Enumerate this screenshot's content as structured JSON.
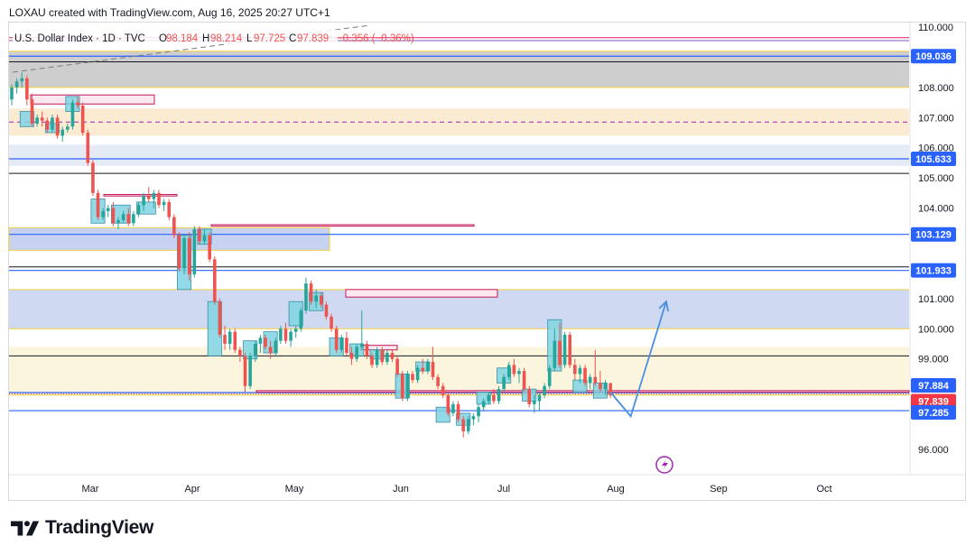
{
  "caption": "LOXAU created with TradingView.com, Aug 16, 2025 20:27 UTC+1",
  "brand": {
    "name": "TradingView",
    "logo_icon": "tradingview-logo-icon"
  },
  "colors": {
    "up": "#26a69a",
    "down": "#ef5350",
    "box_fill": "#7fd3e3",
    "box_stroke": "#3a8fa6",
    "arrow": "#4a90e2",
    "price_badge_blue": "#2962ff",
    "price_badge_red": "#f23645"
  },
  "chart_data": {
    "type": "candlestick",
    "title": "U.S. Dollar Index · 1D · TVC",
    "ohlc": {
      "O_label": "O",
      "O": "98.184",
      "H_label": "H",
      "H": "98.214",
      "L_label": "L",
      "L": "97.725",
      "C_label": "C",
      "C": "97.839",
      "change": "−0.356 (−0.36%)"
    },
    "x_axis_labels": [
      "Mar",
      "Apr",
      "May",
      "Jun",
      "Jul",
      "Aug",
      "Sep",
      "Oct"
    ],
    "y_axis_ticks": [
      "110.000",
      "108.000",
      "107.000",
      "106.000",
      "105.000",
      "104.000",
      "101.000",
      "100.000",
      "99.000",
      "96.000"
    ],
    "ylim": [
      95.2,
      110.0
    ],
    "price_labels": [
      {
        "price": 109.036,
        "text": "109.036",
        "color": "#2962ff"
      },
      {
        "price": 105.633,
        "text": "105.633",
        "color": "#2962ff"
      },
      {
        "price": 103.129,
        "text": "103.129",
        "color": "#2962ff"
      },
      {
        "price": 101.933,
        "text": "101.933",
        "color": "#2962ff"
      },
      {
        "price": 97.884,
        "text": "97.884",
        "color": "#2962ff"
      },
      {
        "price": 97.839,
        "text": "97.839",
        "color": "#f23645"
      },
      {
        "price": 97.285,
        "text": "97.285",
        "color": "#2962ff"
      }
    ],
    "zones": [
      {
        "p1": 108.0,
        "p2": 109.2,
        "fill": "#bdbdbd",
        "opacity": 0.75
      },
      {
        "p1": 106.4,
        "p2": 107.3,
        "fill": "#fbe3c0",
        "opacity": 0.7
      },
      {
        "p1": 105.4,
        "p2": 106.1,
        "fill": "#dfe5f5",
        "opacity": 0.8
      },
      {
        "p1": 100.0,
        "p2": 101.3,
        "fill": "#c7d2f0",
        "opacity": 0.85
      },
      {
        "p1": 97.8,
        "p2": 99.4,
        "fill": "#fbf1cf",
        "opacity": 0.7
      }
    ],
    "candles": [
      {
        "t": 0,
        "o": 107.6,
        "h": 108.1,
        "l": 107.4,
        "c": 108.0
      },
      {
        "t": 1,
        "o": 108.0,
        "h": 108.3,
        "l": 107.8,
        "c": 108.2
      },
      {
        "t": 2,
        "o": 108.2,
        "h": 108.5,
        "l": 108.0,
        "c": 108.3
      },
      {
        "t": 3,
        "o": 108.3,
        "h": 108.4,
        "l": 107.4,
        "c": 107.6
      },
      {
        "t": 4,
        "o": 107.6,
        "h": 107.8,
        "l": 106.7,
        "c": 106.8
      },
      {
        "t": 5,
        "o": 106.8,
        "h": 107.1,
        "l": 106.7,
        "c": 107.0
      },
      {
        "t": 6,
        "o": 107.0,
        "h": 107.2,
        "l": 106.7,
        "c": 106.9
      },
      {
        "t": 7,
        "o": 106.9,
        "h": 107.0,
        "l": 106.5,
        "c": 106.6
      },
      {
        "t": 8,
        "o": 106.6,
        "h": 107.1,
        "l": 106.5,
        "c": 107.0
      },
      {
        "t": 9,
        "o": 107.0,
        "h": 107.1,
        "l": 106.3,
        "c": 106.4
      },
      {
        "t": 10,
        "o": 106.4,
        "h": 106.7,
        "l": 106.2,
        "c": 106.6
      },
      {
        "t": 11,
        "o": 106.6,
        "h": 106.8,
        "l": 106.5,
        "c": 106.7
      },
      {
        "t": 12,
        "o": 106.7,
        "h": 107.6,
        "l": 106.6,
        "c": 107.5
      },
      {
        "t": 13,
        "o": 107.5,
        "h": 107.7,
        "l": 107.3,
        "c": 107.4
      },
      {
        "t": 14,
        "o": 107.4,
        "h": 107.5,
        "l": 106.4,
        "c": 106.5
      },
      {
        "t": 15,
        "o": 106.5,
        "h": 106.6,
        "l": 105.4,
        "c": 105.5
      },
      {
        "t": 16,
        "o": 105.5,
        "h": 105.6,
        "l": 104.4,
        "c": 104.5
      },
      {
        "t": 17,
        "o": 104.5,
        "h": 104.6,
        "l": 103.6,
        "c": 103.7
      },
      {
        "t": 18,
        "o": 103.7,
        "h": 104.0,
        "l": 103.6,
        "c": 103.9
      },
      {
        "t": 19,
        "o": 103.9,
        "h": 104.1,
        "l": 103.7,
        "c": 104.0
      },
      {
        "t": 20,
        "o": 104.0,
        "h": 104.2,
        "l": 103.4,
        "c": 103.5
      },
      {
        "t": 21,
        "o": 103.5,
        "h": 103.7,
        "l": 103.3,
        "c": 103.6
      },
      {
        "t": 22,
        "o": 103.6,
        "h": 103.9,
        "l": 103.5,
        "c": 103.8
      },
      {
        "t": 23,
        "o": 103.8,
        "h": 104.0,
        "l": 103.4,
        "c": 103.5
      },
      {
        "t": 24,
        "o": 103.5,
        "h": 103.9,
        "l": 103.4,
        "c": 103.8
      },
      {
        "t": 25,
        "o": 103.8,
        "h": 104.2,
        "l": 103.7,
        "c": 104.1
      },
      {
        "t": 26,
        "o": 104.1,
        "h": 104.5,
        "l": 103.9,
        "c": 104.4
      },
      {
        "t": 27,
        "o": 104.4,
        "h": 104.7,
        "l": 104.2,
        "c": 104.3
      },
      {
        "t": 28,
        "o": 104.3,
        "h": 104.6,
        "l": 104.0,
        "c": 104.5
      },
      {
        "t": 29,
        "o": 104.5,
        "h": 104.6,
        "l": 104.0,
        "c": 104.1
      },
      {
        "t": 30,
        "o": 104.1,
        "h": 104.3,
        "l": 103.9,
        "c": 104.2
      },
      {
        "t": 31,
        "o": 104.2,
        "h": 104.3,
        "l": 103.6,
        "c": 103.7
      },
      {
        "t": 32,
        "o": 103.7,
        "h": 103.8,
        "l": 103.0,
        "c": 103.1
      },
      {
        "t": 33,
        "o": 103.1,
        "h": 103.2,
        "l": 101.9,
        "c": 102.0
      },
      {
        "t": 34,
        "o": 102.0,
        "h": 103.1,
        "l": 101.8,
        "c": 103.0
      },
      {
        "t": 35,
        "o": 103.0,
        "h": 103.2,
        "l": 101.6,
        "c": 101.8
      },
      {
        "t": 36,
        "o": 101.8,
        "h": 103.4,
        "l": 101.7,
        "c": 103.3
      },
      {
        "t": 37,
        "o": 103.3,
        "h": 103.4,
        "l": 102.8,
        "c": 102.9
      },
      {
        "t": 38,
        "o": 102.9,
        "h": 103.3,
        "l": 102.8,
        "c": 103.1
      },
      {
        "t": 39,
        "o": 103.1,
        "h": 103.2,
        "l": 102.2,
        "c": 102.3
      },
      {
        "t": 40,
        "o": 102.3,
        "h": 102.4,
        "l": 100.8,
        "c": 100.9
      },
      {
        "t": 41,
        "o": 100.9,
        "h": 101.0,
        "l": 99.7,
        "c": 99.8
      },
      {
        "t": 42,
        "o": 99.8,
        "h": 100.1,
        "l": 99.3,
        "c": 99.5
      },
      {
        "t": 43,
        "o": 99.5,
        "h": 100.0,
        "l": 99.3,
        "c": 99.9
      },
      {
        "t": 44,
        "o": 99.9,
        "h": 100.0,
        "l": 99.2,
        "c": 99.3
      },
      {
        "t": 45,
        "o": 99.3,
        "h": 99.4,
        "l": 98.9,
        "c": 99.1
      },
      {
        "t": 46,
        "o": 99.1,
        "h": 99.2,
        "l": 97.9,
        "c": 98.1
      },
      {
        "t": 47,
        "o": 98.1,
        "h": 99.2,
        "l": 98.0,
        "c": 99.1
      },
      {
        "t": 48,
        "o": 99.1,
        "h": 99.6,
        "l": 98.9,
        "c": 99.5
      },
      {
        "t": 49,
        "o": 99.5,
        "h": 99.8,
        "l": 99.2,
        "c": 99.7
      },
      {
        "t": 50,
        "o": 99.7,
        "h": 99.8,
        "l": 99.3,
        "c": 99.4
      },
      {
        "t": 51,
        "o": 99.4,
        "h": 99.6,
        "l": 99.0,
        "c": 99.2
      },
      {
        "t": 52,
        "o": 99.2,
        "h": 99.7,
        "l": 99.1,
        "c": 99.6
      },
      {
        "t": 53,
        "o": 99.6,
        "h": 100.1,
        "l": 99.5,
        "c": 100.0
      },
      {
        "t": 54,
        "o": 100.0,
        "h": 100.2,
        "l": 99.5,
        "c": 99.6
      },
      {
        "t": 55,
        "o": 99.6,
        "h": 100.0,
        "l": 99.4,
        "c": 99.9
      },
      {
        "t": 56,
        "o": 99.9,
        "h": 100.1,
        "l": 99.7,
        "c": 100.0
      },
      {
        "t": 57,
        "o": 100.0,
        "h": 100.7,
        "l": 99.9,
        "c": 100.6
      },
      {
        "t": 58,
        "o": 100.6,
        "h": 101.7,
        "l": 100.5,
        "c": 101.5
      },
      {
        "t": 59,
        "o": 101.5,
        "h": 101.6,
        "l": 100.8,
        "c": 100.9
      },
      {
        "t": 60,
        "o": 100.9,
        "h": 101.3,
        "l": 100.7,
        "c": 101.1
      },
      {
        "t": 61,
        "o": 101.1,
        "h": 101.2,
        "l": 100.7,
        "c": 100.8
      },
      {
        "t": 62,
        "o": 100.8,
        "h": 100.9,
        "l": 100.3,
        "c": 100.4
      },
      {
        "t": 63,
        "o": 100.4,
        "h": 100.5,
        "l": 99.9,
        "c": 100.0
      },
      {
        "t": 64,
        "o": 100.0,
        "h": 100.1,
        "l": 99.2,
        "c": 99.3
      },
      {
        "t": 65,
        "o": 99.3,
        "h": 99.8,
        "l": 99.2,
        "c": 99.7
      },
      {
        "t": 66,
        "o": 99.7,
        "h": 99.9,
        "l": 99.1,
        "c": 99.2
      },
      {
        "t": 67,
        "o": 99.2,
        "h": 99.4,
        "l": 98.8,
        "c": 99.0
      },
      {
        "t": 68,
        "o": 99.0,
        "h": 99.5,
        "l": 98.9,
        "c": 99.4
      },
      {
        "t": 69,
        "o": 99.4,
        "h": 100.6,
        "l": 99.3,
        "c": 99.5
      },
      {
        "t": 70,
        "o": 99.5,
        "h": 99.6,
        "l": 99.0,
        "c": 99.1
      },
      {
        "t": 71,
        "o": 99.1,
        "h": 99.2,
        "l": 98.7,
        "c": 98.8
      },
      {
        "t": 72,
        "o": 98.8,
        "h": 99.4,
        "l": 98.7,
        "c": 99.3
      },
      {
        "t": 73,
        "o": 99.3,
        "h": 99.4,
        "l": 98.8,
        "c": 98.9
      },
      {
        "t": 74,
        "o": 98.9,
        "h": 99.3,
        "l": 98.8,
        "c": 99.2
      },
      {
        "t": 75,
        "o": 99.2,
        "h": 99.3,
        "l": 98.9,
        "c": 99.0
      },
      {
        "t": 76,
        "o": 99.0,
        "h": 99.1,
        "l": 98.4,
        "c": 98.5
      },
      {
        "t": 77,
        "o": 98.5,
        "h": 98.6,
        "l": 97.6,
        "c": 97.7
      },
      {
        "t": 78,
        "o": 97.7,
        "h": 98.6,
        "l": 97.6,
        "c": 98.5
      },
      {
        "t": 79,
        "o": 98.5,
        "h": 98.6,
        "l": 98.2,
        "c": 98.3
      },
      {
        "t": 80,
        "o": 98.3,
        "h": 98.8,
        "l": 98.2,
        "c": 98.7
      },
      {
        "t": 81,
        "o": 98.7,
        "h": 99.0,
        "l": 98.5,
        "c": 98.6
      },
      {
        "t": 82,
        "o": 98.6,
        "h": 99.0,
        "l": 98.5,
        "c": 98.9
      },
      {
        "t": 83,
        "o": 98.9,
        "h": 99.4,
        "l": 98.3,
        "c": 98.4
      },
      {
        "t": 84,
        "o": 98.4,
        "h": 98.5,
        "l": 98.0,
        "c": 98.1
      },
      {
        "t": 85,
        "o": 98.1,
        "h": 98.2,
        "l": 97.7,
        "c": 97.8
      },
      {
        "t": 86,
        "o": 97.8,
        "h": 97.9,
        "l": 97.1,
        "c": 97.2
      },
      {
        "t": 87,
        "o": 97.2,
        "h": 97.6,
        "l": 97.1,
        "c": 97.5
      },
      {
        "t": 88,
        "o": 97.5,
        "h": 97.6,
        "l": 96.9,
        "c": 97.0
      },
      {
        "t": 89,
        "o": 97.0,
        "h": 97.1,
        "l": 96.4,
        "c": 96.6
      },
      {
        "t": 90,
        "o": 96.6,
        "h": 97.1,
        "l": 96.5,
        "c": 97.0
      },
      {
        "t": 91,
        "o": 97.0,
        "h": 97.2,
        "l": 96.8,
        "c": 97.1
      },
      {
        "t": 92,
        "o": 97.1,
        "h": 97.5,
        "l": 96.9,
        "c": 97.4
      },
      {
        "t": 93,
        "o": 97.4,
        "h": 97.7,
        "l": 97.3,
        "c": 97.6
      },
      {
        "t": 94,
        "o": 97.6,
        "h": 97.9,
        "l": 97.5,
        "c": 97.8
      },
      {
        "t": 95,
        "o": 97.8,
        "h": 98.0,
        "l": 97.5,
        "c": 97.6
      },
      {
        "t": 96,
        "o": 97.6,
        "h": 98.1,
        "l": 97.5,
        "c": 98.0
      },
      {
        "t": 97,
        "o": 98.0,
        "h": 98.5,
        "l": 97.9,
        "c": 98.4
      },
      {
        "t": 98,
        "o": 98.4,
        "h": 98.9,
        "l": 98.3,
        "c": 98.8
      },
      {
        "t": 99,
        "o": 98.8,
        "h": 99.0,
        "l": 98.4,
        "c": 98.5
      },
      {
        "t": 100,
        "o": 98.5,
        "h": 98.7,
        "l": 98.2,
        "c": 98.6
      },
      {
        "t": 101,
        "o": 98.6,
        "h": 98.7,
        "l": 97.9,
        "c": 98.0
      },
      {
        "t": 102,
        "o": 98.0,
        "h": 98.1,
        "l": 97.4,
        "c": 97.5
      },
      {
        "t": 103,
        "o": 97.5,
        "h": 97.8,
        "l": 97.2,
        "c": 97.6
      },
      {
        "t": 104,
        "o": 97.6,
        "h": 97.9,
        "l": 97.3,
        "c": 97.8
      },
      {
        "t": 105,
        "o": 97.8,
        "h": 98.2,
        "l": 97.7,
        "c": 98.1
      },
      {
        "t": 106,
        "o": 98.1,
        "h": 98.8,
        "l": 98.0,
        "c": 98.7
      },
      {
        "t": 107,
        "o": 98.7,
        "h": 100.0,
        "l": 98.6,
        "c": 99.6
      },
      {
        "t": 108,
        "o": 99.6,
        "h": 100.2,
        "l": 98.7,
        "c": 98.8
      },
      {
        "t": 109,
        "o": 98.8,
        "h": 99.9,
        "l": 98.7,
        "c": 99.8
      },
      {
        "t": 110,
        "o": 99.8,
        "h": 99.9,
        "l": 98.7,
        "c": 98.8
      },
      {
        "t": 111,
        "o": 98.8,
        "h": 99.0,
        "l": 98.3,
        "c": 98.5
      },
      {
        "t": 112,
        "o": 98.5,
        "h": 98.8,
        "l": 98.2,
        "c": 98.7
      },
      {
        "t": 113,
        "o": 98.7,
        "h": 98.8,
        "l": 98.1,
        "c": 98.2
      },
      {
        "t": 114,
        "o": 98.2,
        "h": 98.5,
        "l": 98.0,
        "c": 98.4
      },
      {
        "t": 115,
        "o": 98.4,
        "h": 99.3,
        "l": 98.1,
        "c": 98.2
      },
      {
        "t": 116,
        "o": 98.2,
        "h": 98.6,
        "l": 97.9,
        "c": 98.0
      },
      {
        "t": 117,
        "o": 98.0,
        "h": 98.3,
        "l": 97.8,
        "c": 98.2
      },
      {
        "t": 118,
        "o": 98.2,
        "h": 98.2,
        "l": 97.7,
        "c": 97.8
      }
    ],
    "highlight_boxes": [
      {
        "t1": 2,
        "t2": 4,
        "p1": 106.7,
        "p2": 107.2
      },
      {
        "t1": 7,
        "t2": 9,
        "p1": 106.5,
        "p2": 106.8
      },
      {
        "t1": 11,
        "t2": 13,
        "p1": 107.2,
        "p2": 107.7
      },
      {
        "t1": 16,
        "t2": 18,
        "p1": 103.5,
        "p2": 104.3
      },
      {
        "t1": 20,
        "t2": 23,
        "p1": 103.5,
        "p2": 104.1
      },
      {
        "t1": 25,
        "t2": 28,
        "p1": 103.8,
        "p2": 104.2
      },
      {
        "t1": 33,
        "t2": 35,
        "p1": 101.3,
        "p2": 103.1
      },
      {
        "t1": 37,
        "t2": 39,
        "p1": 102.8,
        "p2": 103.3
      },
      {
        "t1": 39,
        "t2": 41,
        "p1": 99.1,
        "p2": 100.9
      },
      {
        "t1": 46,
        "t2": 48,
        "p1": 99.0,
        "p2": 99.6
      },
      {
        "t1": 50,
        "t2": 52,
        "p1": 99.2,
        "p2": 99.9
      },
      {
        "t1": 55,
        "t2": 57,
        "p1": 100.1,
        "p2": 100.9
      },
      {
        "t1": 59,
        "t2": 61,
        "p1": 100.6,
        "p2": 101.2
      },
      {
        "t1": 63,
        "t2": 65,
        "p1": 99.1,
        "p2": 99.7
      },
      {
        "t1": 67,
        "t2": 69,
        "p1": 99.1,
        "p2": 99.5
      },
      {
        "t1": 71,
        "t2": 73,
        "p1": 99.0,
        "p2": 99.3
      },
      {
        "t1": 76,
        "t2": 78,
        "p1": 97.7,
        "p2": 98.5
      },
      {
        "t1": 80,
        "t2": 82,
        "p1": 98.6,
        "p2": 98.9
      },
      {
        "t1": 84,
        "t2": 86,
        "p1": 96.9,
        "p2": 97.4
      },
      {
        "t1": 88,
        "t2": 90,
        "p1": 96.8,
        "p2": 97.2
      },
      {
        "t1": 92,
        "t2": 94,
        "p1": 97.5,
        "p2": 97.9
      },
      {
        "t1": 96,
        "t2": 98,
        "p1": 98.2,
        "p2": 98.7
      },
      {
        "t1": 101,
        "t2": 103,
        "p1": 97.6,
        "p2": 98.0
      },
      {
        "t1": 106,
        "t2": 108,
        "p1": 98.6,
        "p2": 100.3
      },
      {
        "t1": 111,
        "t2": 113,
        "p1": 97.9,
        "p2": 98.3
      },
      {
        "t1": 115,
        "t2": 117,
        "p1": 97.7,
        "p2": 98.2
      }
    ],
    "hlines": [
      {
        "price": 109.036,
        "color": "#2962ff",
        "width": 1.2,
        "dash": ""
      },
      {
        "price": 108.85,
        "color": "#131722",
        "width": 1,
        "dash": ""
      },
      {
        "price": 106.85,
        "color": "#9c27b0",
        "width": 1,
        "dash": "5,4"
      },
      {
        "price": 105.633,
        "color": "#2962ff",
        "width": 1.2,
        "dash": ""
      },
      {
        "price": 105.15,
        "color": "#131722",
        "width": 1,
        "dash": ""
      },
      {
        "price": 103.129,
        "color": "#2962ff",
        "width": 1.2,
        "dash": ""
      },
      {
        "price": 102.05,
        "color": "#131722",
        "width": 1,
        "dash": ""
      },
      {
        "price": 101.933,
        "color": "#2962ff",
        "width": 1.2,
        "dash": ""
      },
      {
        "price": 99.1,
        "color": "#131722",
        "width": 1,
        "dash": ""
      },
      {
        "price": 97.884,
        "color": "#2962ff",
        "width": 1.2,
        "dash": ""
      },
      {
        "price": 97.839,
        "color": "#f23645",
        "width": 1,
        "dash": "1,2"
      },
      {
        "price": 97.285,
        "color": "#2962ff",
        "width": 1.2,
        "dash": ""
      }
    ],
    "projection": [
      {
        "t": 118,
        "price": 97.9
      },
      {
        "t": 122,
        "price": 97.1
      },
      {
        "t": 129,
        "price": 100.9
      }
    ]
  }
}
